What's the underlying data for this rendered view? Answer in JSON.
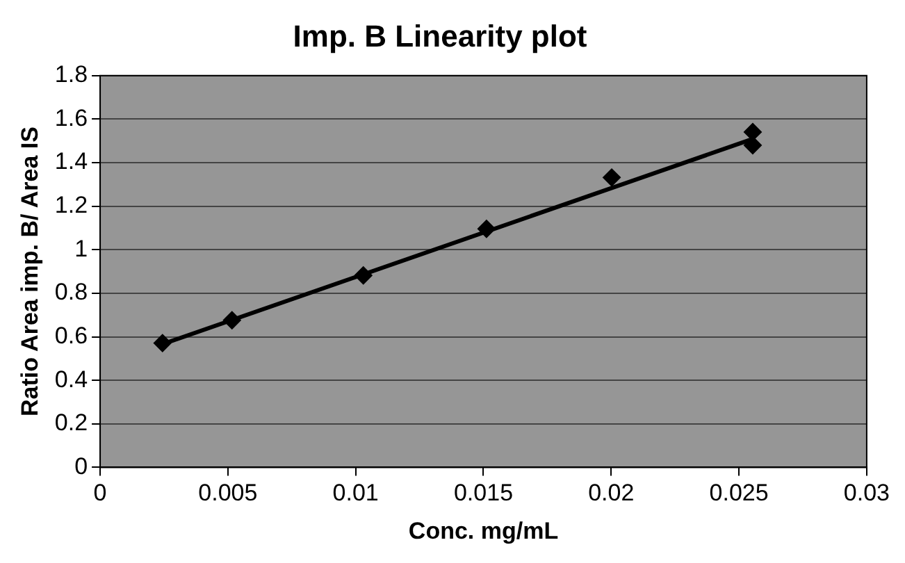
{
  "chart_data": {
    "type": "scatter",
    "title": "Imp. B Linearity plot",
    "xlabel": "Conc. mg/mL",
    "ylabel": "Ratio Area imp. B/ Area IS",
    "series": [
      {
        "color": "#000000",
        "x": [
          0.00244,
          0.00516,
          0.0103,
          0.01512,
          0.02002,
          0.02554,
          0.02554
        ],
        "values": [
          0.571,
          0.676,
          0.882,
          1.096,
          1.332,
          1.541,
          1.48
        ]
      },
      {
        "type": "line",
        "marker": "none",
        "color": "#000000",
        "x": [
          0.00244,
          0.02554
        ],
        "values": [
          0.566,
          1.509
        ]
      }
    ],
    "xlim": [
      0,
      0.03
    ],
    "xticks": [
      0,
      0.005,
      0.01,
      0.015,
      0.02,
      0.025,
      0.03
    ],
    "ylim": [
      0,
      1.8
    ],
    "yticks": [
      0,
      0.2,
      0.4,
      0.6,
      0.8,
      1,
      1.2,
      1.4,
      1.6,
      1.8
    ],
    "grid": "y",
    "legend": false,
    "marker": "diamond"
  }
}
